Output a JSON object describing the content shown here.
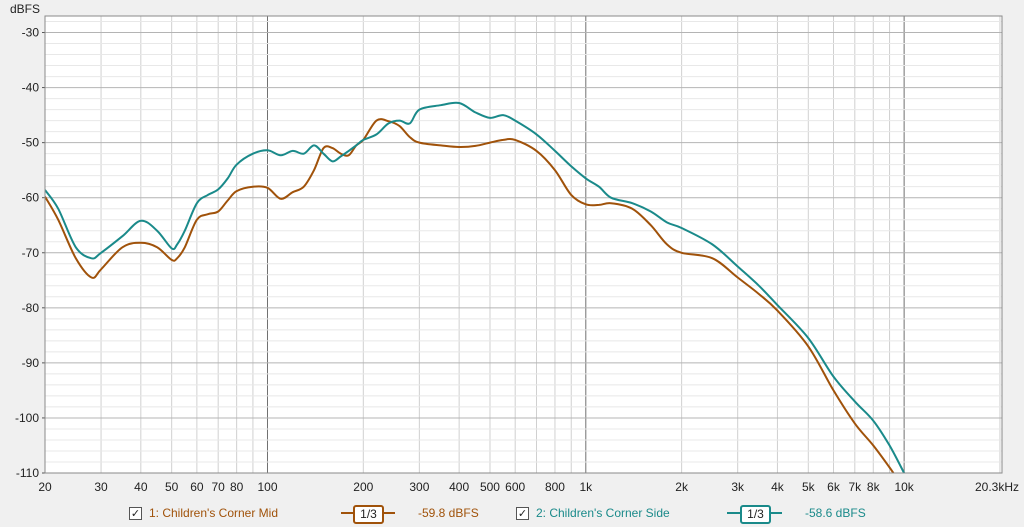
{
  "chart_data": {
    "type": "line",
    "title": "",
    "ylabel": "dBFS",
    "x_scale": "log",
    "xlim": [
      20,
      20300
    ],
    "ylim": [
      -110,
      -27
    ],
    "grid": true,
    "y_ticks": [
      -30,
      -40,
      -50,
      -60,
      -70,
      -80,
      -90,
      -100,
      -110
    ],
    "x_tick_labels": [
      {
        "v": 20,
        "t": "20"
      },
      {
        "v": 30,
        "t": "30"
      },
      {
        "v": 40,
        "t": "40"
      },
      {
        "v": 50,
        "t": "50"
      },
      {
        "v": 60,
        "t": "60"
      },
      {
        "v": 70,
        "t": "70"
      },
      {
        "v": 80,
        "t": "80"
      },
      {
        "v": 100,
        "t": "100"
      },
      {
        "v": 200,
        "t": "200"
      },
      {
        "v": 300,
        "t": "300"
      },
      {
        "v": 400,
        "t": "400"
      },
      {
        "v": 500,
        "t": "500"
      },
      {
        "v": 600,
        "t": "600"
      },
      {
        "v": 800,
        "t": "800"
      },
      {
        "v": 1000,
        "t": "1k"
      },
      {
        "v": 2000,
        "t": "2k"
      },
      {
        "v": 3000,
        "t": "3k"
      },
      {
        "v": 4000,
        "t": "4k"
      },
      {
        "v": 5000,
        "t": "5k"
      },
      {
        "v": 6000,
        "t": "6k"
      },
      {
        "v": 7000,
        "t": "7k"
      },
      {
        "v": 8000,
        "t": "8k"
      },
      {
        "v": 10000,
        "t": "10k"
      },
      {
        "v": 20300,
        "t": "20.3kHz"
      }
    ],
    "series": [
      {
        "name": "1: Children's Corner Mid",
        "color": "#a0520a",
        "x": [
          20,
          22,
          25,
          28,
          30,
          35,
          40,
          45,
          50,
          52,
          55,
          60,
          65,
          70,
          75,
          80,
          90,
          100,
          110,
          120,
          130,
          140,
          150,
          160,
          170,
          180,
          190,
          200,
          220,
          240,
          260,
          280,
          300,
          350,
          400,
          450,
          500,
          550,
          600,
          700,
          800,
          900,
          1000,
          1100,
          1200,
          1400,
          1600,
          1800,
          2000,
          2500,
          3000,
          3500,
          4000,
          5000,
          6000,
          7000,
          8000,
          9000,
          9500
        ],
        "y": [
          -59.8,
          -64,
          -71,
          -74.5,
          -73,
          -69,
          -68.2,
          -69,
          -71.3,
          -71,
          -69,
          -64,
          -63,
          -62.5,
          -60.5,
          -58.8,
          -58,
          -58.2,
          -60.2,
          -59,
          -58,
          -55,
          -51,
          -51,
          -52,
          -52.3,
          -50.5,
          -49.5,
          -46,
          -46.1,
          -47,
          -49,
          -50,
          -50.5,
          -50.8,
          -50.6,
          -50,
          -49.5,
          -49.5,
          -51.5,
          -55,
          -59.5,
          -61.2,
          -61.3,
          -61,
          -62,
          -65,
          -68.5,
          -70,
          -71,
          -74.5,
          -77.5,
          -80.5,
          -87,
          -95,
          -101,
          -105,
          -109,
          -111
        ]
      },
      {
        "name": "2: Children's Corner Side",
        "color": "#1a8a8a",
        "x": [
          20,
          22,
          25,
          28,
          30,
          35,
          40,
          45,
          50,
          52,
          55,
          60,
          65,
          70,
          75,
          80,
          90,
          100,
          110,
          120,
          130,
          140,
          150,
          160,
          170,
          180,
          190,
          200,
          220,
          240,
          260,
          280,
          300,
          350,
          400,
          450,
          500,
          550,
          600,
          700,
          800,
          900,
          1000,
          1100,
          1200,
          1400,
          1600,
          1800,
          2000,
          2500,
          3000,
          3500,
          4000,
          5000,
          6000,
          7000,
          8000,
          9000,
          10000
        ],
        "y": [
          -58.6,
          -62,
          -69,
          -71,
          -70,
          -67,
          -64.2,
          -66,
          -69.2,
          -68.5,
          -66,
          -61,
          -59.5,
          -58.5,
          -56.5,
          -54,
          -52,
          -51.4,
          -52.3,
          -51.5,
          -52,
          -50.5,
          -52,
          -53.4,
          -52.5,
          -51.5,
          -50.5,
          -49.5,
          -48.5,
          -46.5,
          -46,
          -46.5,
          -44,
          -43.2,
          -42.8,
          -44.5,
          -45.5,
          -45,
          -46,
          -48.5,
          -51.5,
          -54.3,
          -56.5,
          -58,
          -60,
          -61,
          -62.5,
          -64.5,
          -65.5,
          -68.5,
          -72.5,
          -76,
          -79.5,
          -85.5,
          -92.5,
          -97,
          -100.5,
          -105,
          -110
        ]
      }
    ]
  },
  "legend": {
    "series1": {
      "checked": "✓",
      "label": "1: Children's Corner Mid",
      "smoothing": "1/3",
      "level": "-59.8 dBFS"
    },
    "series2": {
      "checked": "✓",
      "label": "2: Children's Corner Side",
      "smoothing": "1/3",
      "level": "-58.6 dBFS"
    }
  }
}
